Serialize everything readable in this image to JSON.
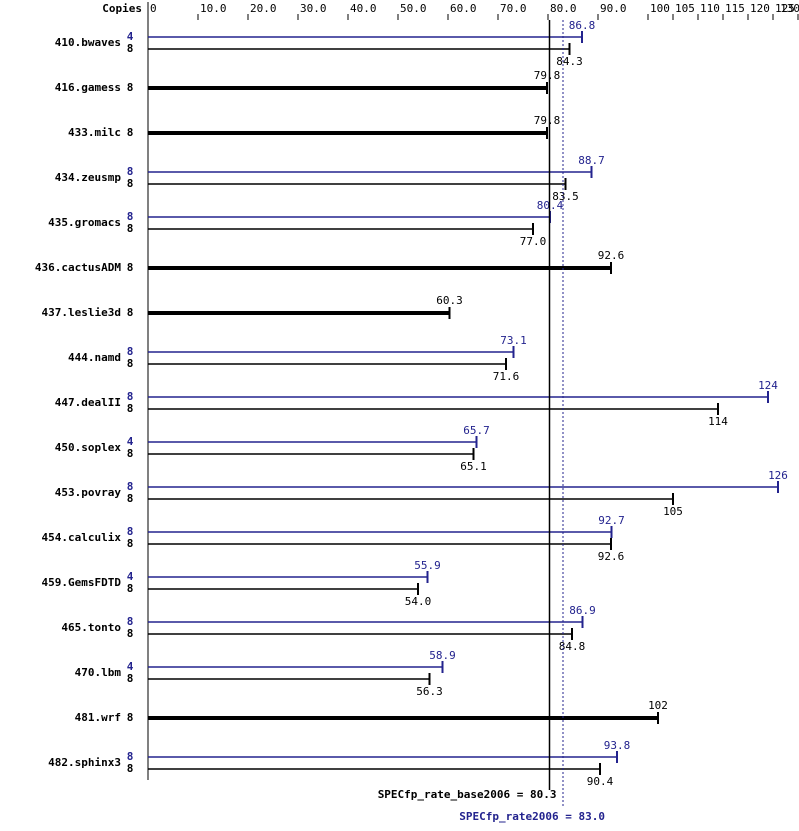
{
  "chart_data": {
    "type": "spec-bar",
    "copies_header": "Copies",
    "xlim": [
      0,
      130
    ],
    "xticks": [
      0,
      {
        "value": 10,
        "label": "10.0"
      },
      {
        "value": 20,
        "label": "20.0"
      },
      {
        "value": 30,
        "label": "30.0"
      },
      {
        "value": 40,
        "label": "40.0"
      },
      {
        "value": 50,
        "label": "50.0"
      },
      {
        "value": 60,
        "label": "60.0"
      },
      {
        "value": 70,
        "label": "70.0"
      },
      {
        "value": 80,
        "label": "80.0"
      },
      {
        "value": 90,
        "label": "90.0"
      },
      100,
      105,
      110,
      115,
      120,
      125,
      130
    ],
    "categories": [
      "410.bwaves",
      "416.gamess",
      "433.milc",
      "434.zeusmp",
      "435.gromacs",
      "436.cactusADM",
      "437.leslie3d",
      "444.namd",
      "447.dealII",
      "450.soplex",
      "453.povray",
      "454.calculix",
      "459.GemsFDTD",
      "465.tonto",
      "470.lbm",
      "481.wrf",
      "482.sphinx3"
    ],
    "series": [
      {
        "name": "base",
        "color": "#000000",
        "copies": [
          8,
          8,
          8,
          8,
          8,
          8,
          8,
          8,
          8,
          8,
          8,
          8,
          8,
          8,
          8,
          8,
          8
        ],
        "values": [
          84.3,
          79.8,
          79.8,
          83.5,
          77.0,
          92.6,
          60.3,
          71.6,
          114,
          65.1,
          105,
          92.6,
          54.0,
          84.8,
          56.3,
          102,
          90.4
        ],
        "value_labels": [
          "84.3",
          "79.8",
          "79.8",
          "83.5",
          "77.0",
          "92.6",
          "60.3",
          "71.6",
          "114",
          "65.1",
          "105",
          "92.6",
          "54.0",
          "84.8",
          "56.3",
          "102",
          "90.4"
        ]
      },
      {
        "name": "peak",
        "color": "#23238e",
        "copies": [
          4,
          null,
          null,
          8,
          8,
          null,
          null,
          8,
          8,
          4,
          8,
          8,
          4,
          8,
          4,
          null,
          8
        ],
        "values": [
          86.8,
          null,
          null,
          88.7,
          80.4,
          null,
          null,
          73.1,
          124,
          65.7,
          126,
          92.7,
          55.9,
          86.9,
          58.9,
          null,
          93.8
        ],
        "value_labels": [
          "86.8",
          null,
          null,
          "88.7",
          "80.4",
          null,
          null,
          "73.1",
          "124",
          "65.7",
          "126",
          "92.7",
          "55.9",
          "86.9",
          "58.9",
          null,
          "93.8"
        ]
      }
    ],
    "base_score": 80.3,
    "base_score_label": "SPECfp_rate_base2006 = 80.3",
    "peak_score": 83.0,
    "peak_score_label": "SPECfp_rate2006 = 83.0"
  }
}
